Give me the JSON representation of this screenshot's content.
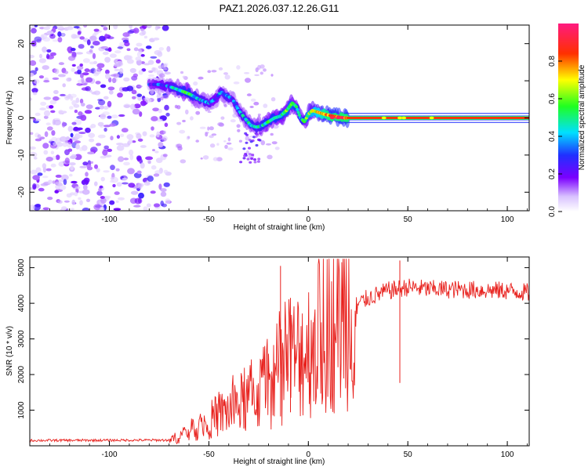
{
  "title": "PAZ1.2026.037.12.26.G11",
  "chart_data": [
    {
      "type": "heatmap",
      "title": "PAZ1.2026.037.12.26.G11",
      "xlabel": "Height of straight line (km)",
      "ylabel": "Frequency (Hz)",
      "xlim": [
        -140,
        111
      ],
      "ylim": [
        -25,
        25
      ],
      "xticks": [
        -100,
        -50,
        0,
        50,
        100
      ],
      "yticks": [
        -20,
        -10,
        0,
        10,
        20
      ],
      "xtick_labels": [
        "-100",
        "-50",
        "0",
        "50",
        "100"
      ],
      "ytick_labels": [
        "-20",
        "-10",
        "0",
        "10",
        "20"
      ],
      "colorbar": {
        "label": "Normalized spectral amplitude",
        "range": [
          0,
          1
        ],
        "ticks": [
          0,
          0.2,
          0.4,
          0.6,
          0.8
        ],
        "tick_labels": [
          "0.0",
          "0.2",
          "0.4",
          "0.6",
          "0.8"
        ],
        "colormap": [
          "#ffffff",
          "#7b00ff",
          "#2030ff",
          "#00e0ff",
          "#20ff20",
          "#ffff00",
          "#ff3000",
          "#ff1a80"
        ]
      },
      "noise_region": {
        "x": [
          -140,
          -70
        ],
        "y": [
          -25,
          25
        ],
        "level": 0.15
      },
      "ridge": {
        "x": [
          -80,
          -75,
          -70,
          -65,
          -60,
          -55,
          -50,
          -47,
          -44,
          -41,
          -38,
          -35,
          -32,
          -29,
          -26,
          -23,
          -20,
          -17,
          -14,
          -11,
          -8,
          -6,
          -4,
          -2,
          0,
          2,
          5,
          8,
          12,
          18,
          111
        ],
        "freq": [
          9,
          9,
          8.5,
          7.5,
          6.5,
          5,
          4,
          5,
          7,
          6,
          5,
          2,
          0,
          -2,
          -2.5,
          -2,
          -1,
          0,
          0.5,
          2,
          4,
          3,
          0,
          -1,
          1,
          2,
          1.5,
          1,
          0.5,
          0,
          0
        ],
        "amplitude": [
          0.25,
          0.3,
          0.35,
          0.45,
          0.5,
          0.4,
          0.35,
          0.3,
          0.35,
          0.4,
          0.3,
          0.35,
          0.4,
          0.45,
          0.4,
          0.45,
          0.5,
          0.5,
          0.5,
          0.55,
          0.55,
          0.5,
          0.4,
          0.5,
          0.6,
          0.65,
          0.7,
          0.8,
          0.85,
          0.85,
          0.85
        ]
      }
    },
    {
      "type": "line",
      "xlabel": "Height of straight line (km)",
      "ylabel": "SNR (10 * v/v)",
      "xlim": [
        -140,
        111
      ],
      "ylim": [
        0,
        5300
      ],
      "xticks": [
        -100,
        -50,
        0,
        50,
        100
      ],
      "yticks": [
        1000,
        2000,
        3000,
        4000,
        5000
      ],
      "xtick_labels": [
        "-100",
        "-50",
        "0",
        "50",
        "100"
      ],
      "ytick_labels": [
        "1000",
        "2000",
        "3000",
        "4000",
        "5000"
      ],
      "color": "#e8201c",
      "trend": {
        "x": [
          -140,
          -70,
          -65,
          -60,
          -50,
          -40,
          -30,
          -20,
          -10,
          0,
          10,
          20,
          30,
          40,
          50,
          60,
          80,
          100,
          111
        ],
        "y": [
          150,
          160,
          250,
          400,
          700,
          1000,
          1300,
          1700,
          2300,
          2800,
          3300,
          3800,
          4150,
          4350,
          4450,
          4400,
          4380,
          4350,
          4300
        ]
      },
      "spikes": [
        {
          "x": -14,
          "y": 5050
        },
        {
          "x": 46,
          "y": 5200
        },
        {
          "x": -9,
          "y": 4150
        }
      ]
    }
  ]
}
